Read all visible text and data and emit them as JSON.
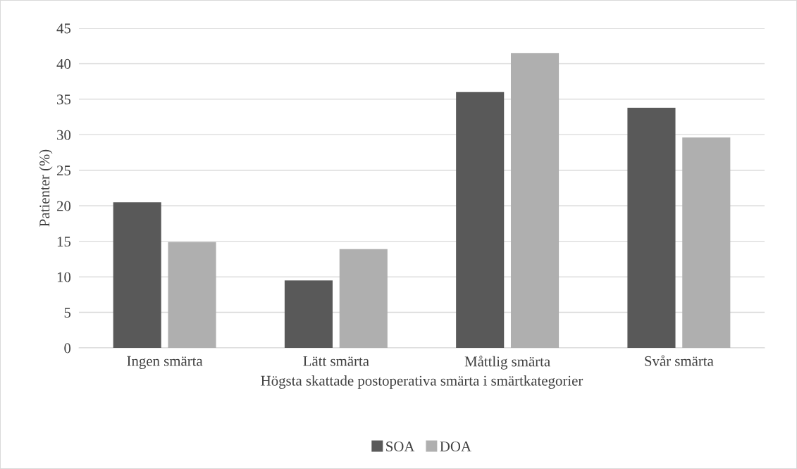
{
  "chart_data": {
    "type": "bar",
    "xlabel": "Högsta skattade postoperativa smärta i smärtkategorier",
    "ylabel": "Patienter (%)",
    "categories": [
      "Ingen smärta",
      "Lätt smärta",
      "Måttlig smärta",
      "Svår smärta"
    ],
    "series": [
      {
        "name": "SOA",
        "color": "#595959",
        "values": [
          20.5,
          9.5,
          36.0,
          33.8
        ]
      },
      {
        "name": "DOA",
        "color": "#afafaf",
        "values": [
          14.9,
          13.9,
          41.5,
          29.6
        ]
      }
    ],
    "ylim": [
      0,
      45
    ],
    "yticks": [
      0,
      5,
      10,
      15,
      20,
      25,
      30,
      35,
      40,
      45
    ],
    "grid": "y",
    "legend": "bottom"
  }
}
